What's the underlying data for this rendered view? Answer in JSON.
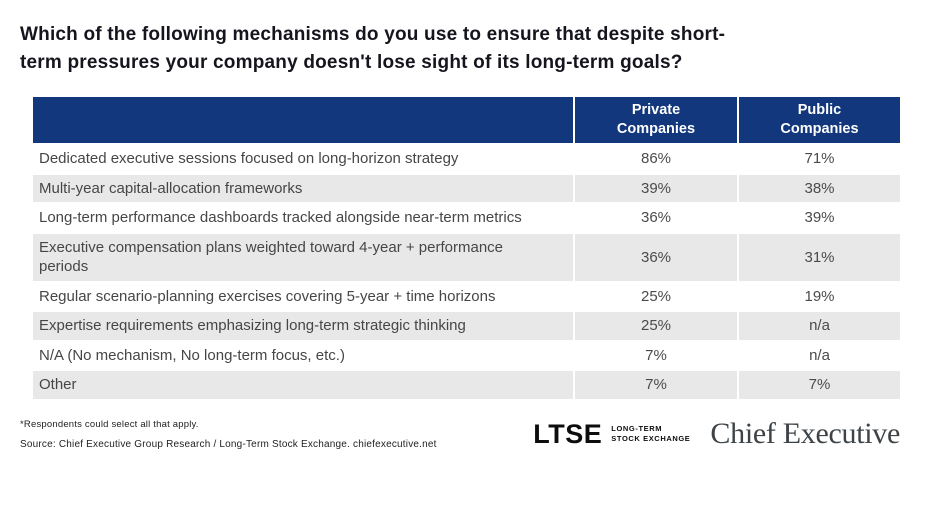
{
  "title": {
    "line1": "Which of the following mechanisms do you use to ensure that despite short-",
    "line2": "term pressures your company doesn't lose sight of its long-term goals?"
  },
  "chart_data": {
    "type": "table",
    "title": "Which of the following mechanisms do you use to ensure that despite short-term pressures your company doesn't lose sight of its long-term goals?",
    "categories": [
      "Dedicated executive sessions focused on long-horizon strategy",
      "Multi-year capital-allocation frameworks",
      "Long-term performance dashboards tracked alongside near-term metrics",
      "Executive compensation plans weighted toward 4-year + performance periods",
      "Regular scenario-planning exercises covering 5-year + time horizons",
      "Expertise requirements emphasizing long-term strategic thinking",
      "N/A (No mechanism, No long-term focus, etc.)",
      "Other"
    ],
    "series": [
      {
        "name": "Private Companies",
        "values": [
          "86%",
          "39%",
          "36%",
          "36%",
          "25%",
          "25%",
          "7%",
          "7%"
        ]
      },
      {
        "name": "Public Companies",
        "values": [
          "71%",
          "38%",
          "39%",
          "31%",
          "19%",
          "n/a",
          "n/a",
          "7%"
        ]
      }
    ],
    "layout": {
      "header_background": "#13377c",
      "row_striping": "alternating white and light gray",
      "value_alignment": "center"
    }
  },
  "footer": {
    "footnote": "*Respondents could select all that apply.",
    "source": "Source:  Chief Executive Group Research  / Long-Term Stock Exchange. chiefexecutive.net"
  },
  "logos": {
    "ltse_wordmark": "LTSE",
    "ltse_tagline_line1": "LONG-TERM",
    "ltse_tagline_line2": "STOCK EXCHANGE",
    "chief_executive": "Chief Executive"
  },
  "colors": {
    "header_navy": "#13377c",
    "row_gray": "#e8e8e8",
    "title_text": "#15151e"
  }
}
